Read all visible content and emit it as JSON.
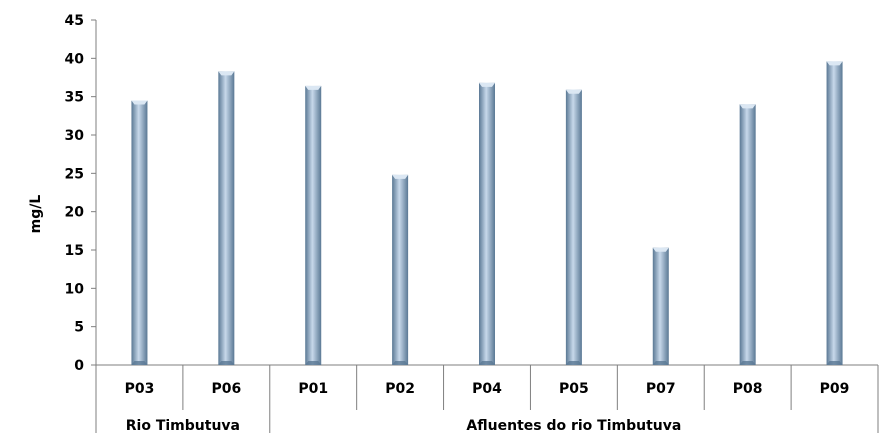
{
  "chart_data": {
    "type": "bar",
    "title": "",
    "xlabel": "",
    "ylabel": "mg/L",
    "ylim": [
      0,
      45
    ],
    "yticks": [
      0,
      5,
      10,
      15,
      20,
      25,
      30,
      35,
      40,
      45
    ],
    "grid": false,
    "legend": "none",
    "categories": [
      "P03",
      "P06",
      "P01",
      "P02",
      "P04",
      "P05",
      "P07",
      "P08",
      "P09"
    ],
    "values": [
      34.5,
      38.3,
      36.4,
      24.8,
      36.8,
      35.9,
      15.3,
      34.0,
      39.6
    ],
    "groups": [
      {
        "label": "Rio Timbutuva",
        "categories": [
          "P03",
          "P06"
        ]
      },
      {
        "label": "Afluentes do rio Timbutuva",
        "categories": [
          "P01",
          "P02",
          "P04",
          "P05",
          "P07",
          "P08",
          "P09"
        ]
      }
    ],
    "colors": {
      "bar_dark": "#5a7894",
      "bar_light": "#c7d8ea",
      "bar_cap": "#dbe7f3",
      "axis": "#7f7f7f"
    }
  }
}
